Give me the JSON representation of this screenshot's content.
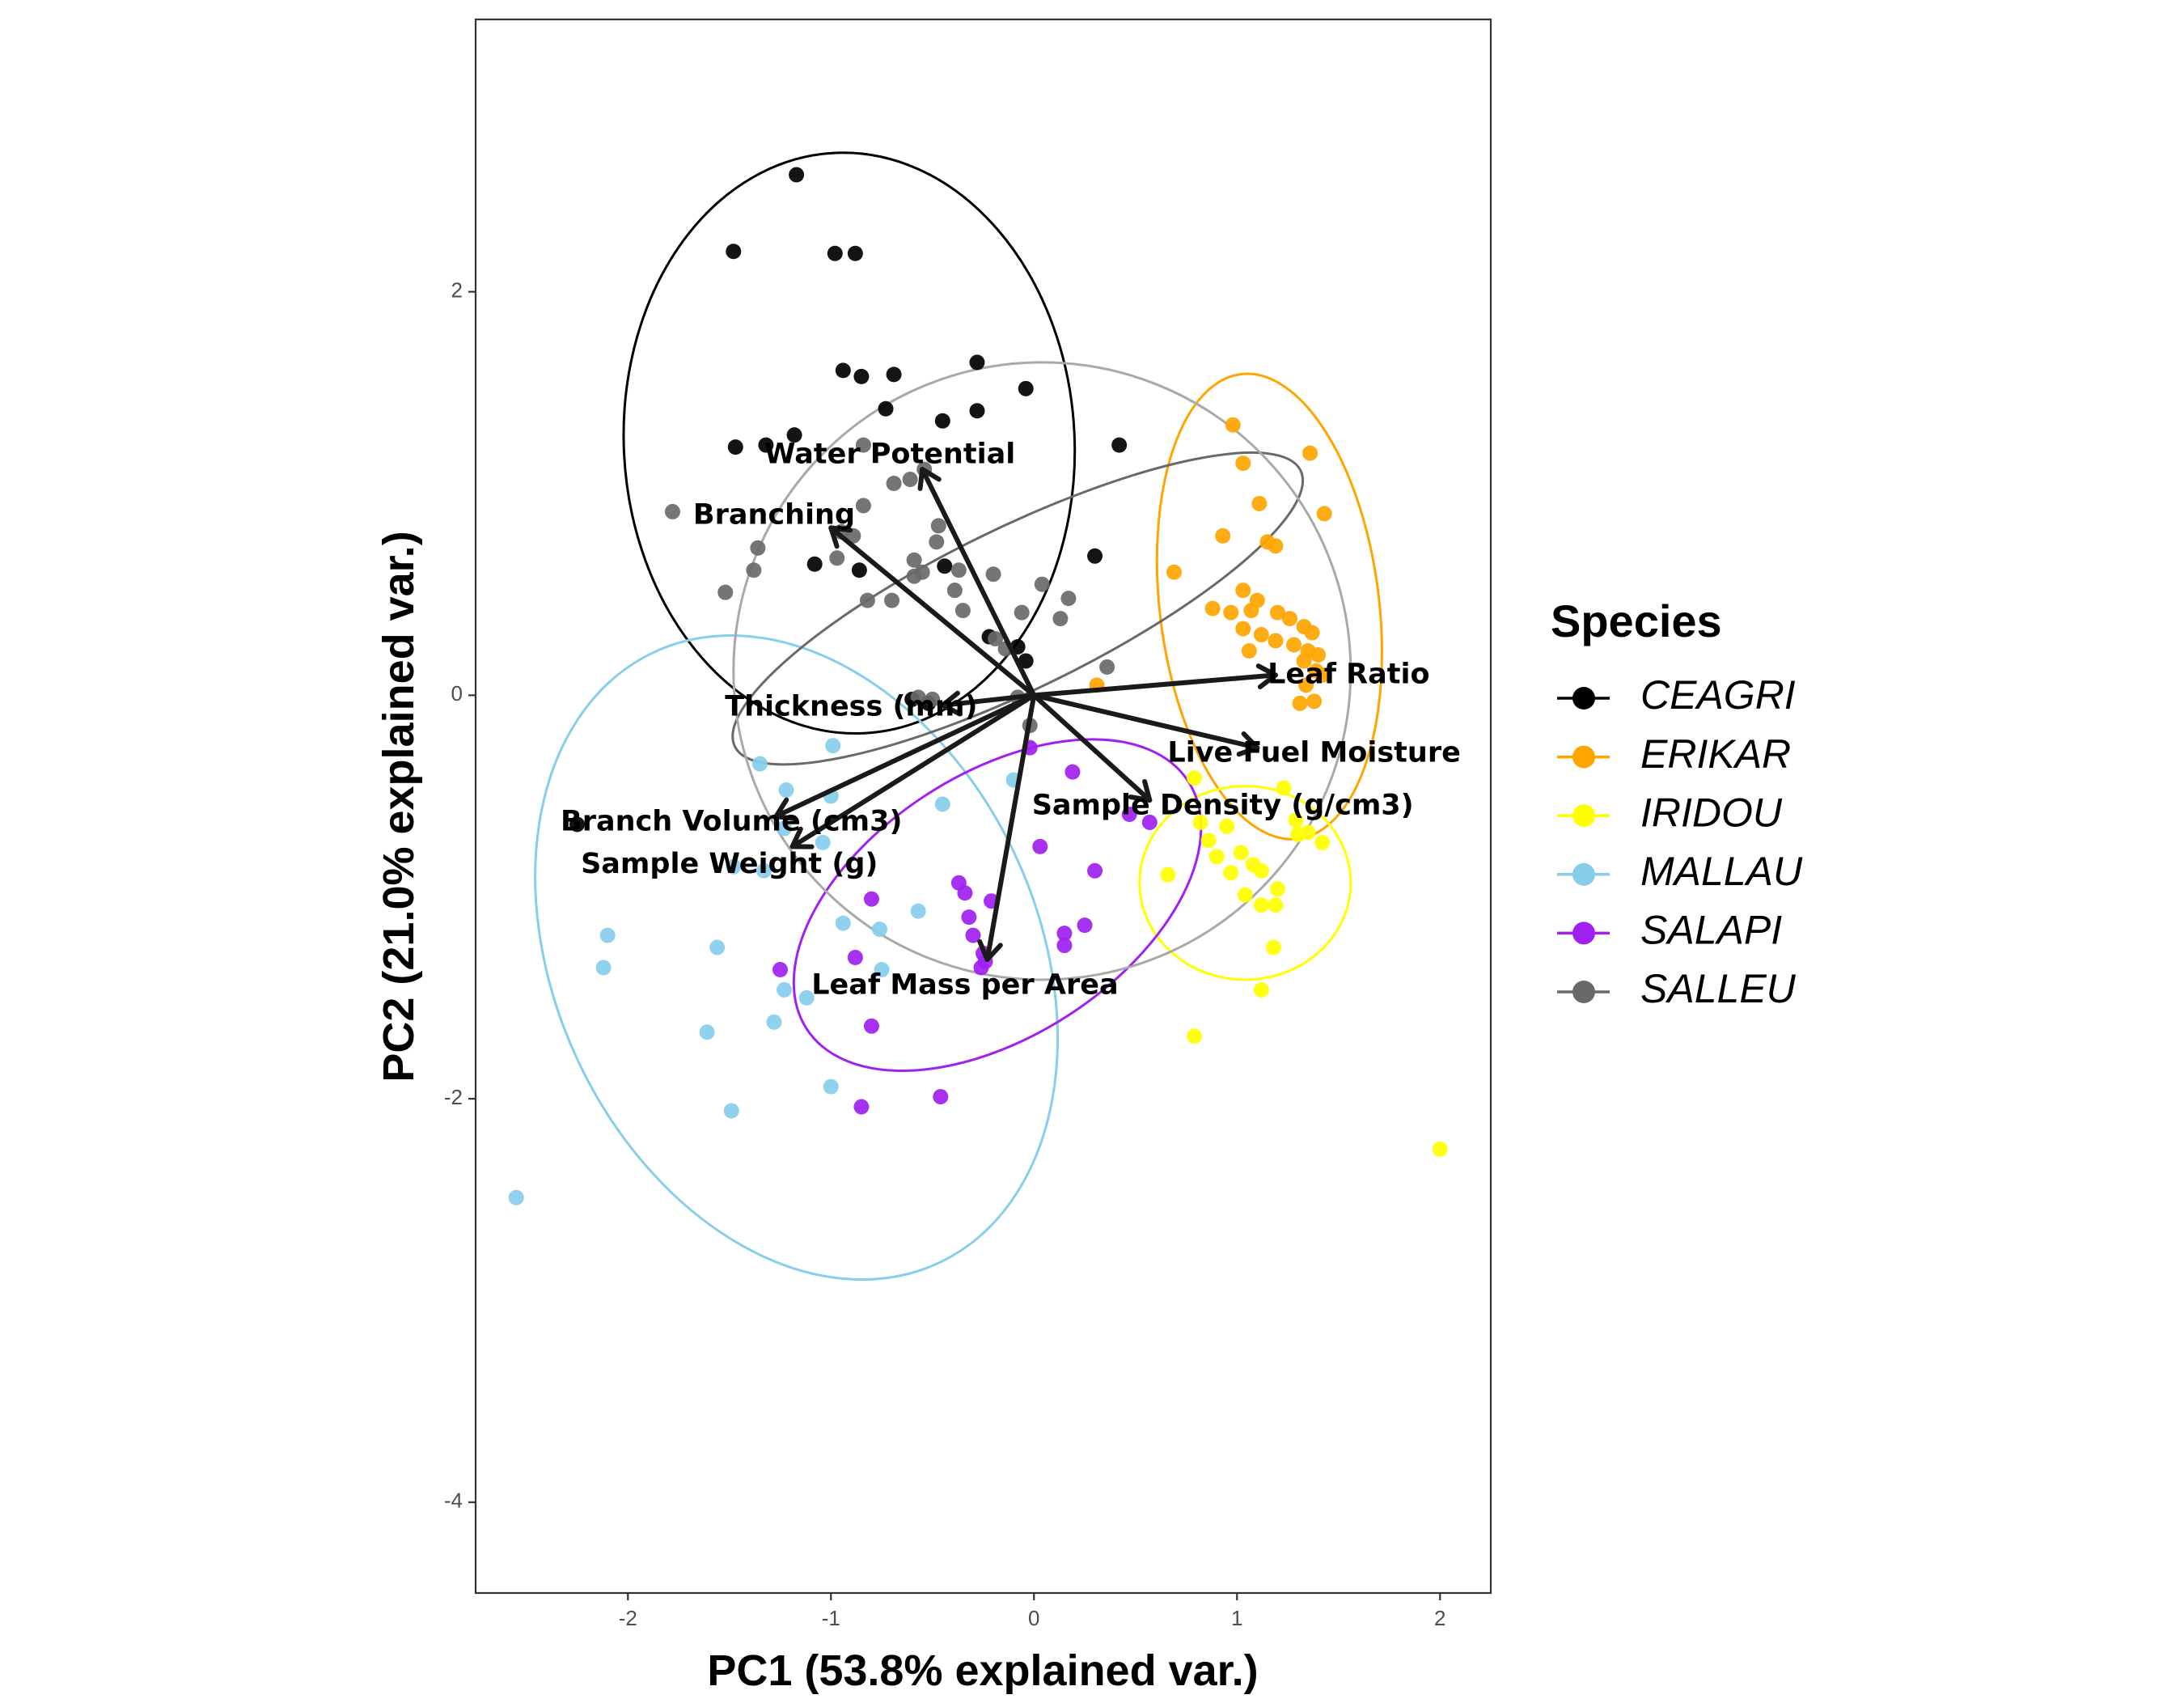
{
  "chart_data": {
    "type": "scatter",
    "subtype": "pca-biplot",
    "xlabel": "PC1 (53.8% explained var.)",
    "ylabel": "PC2 (21.0% explained var.)",
    "xlim": [
      -2.75,
      2.25
    ],
    "ylim": [
      -4.45,
      3.35
    ],
    "x_ticks": [
      -2,
      -1,
      0,
      1,
      2
    ],
    "y_ticks": [
      -4,
      -2,
      0,
      2
    ],
    "grid": false,
    "legend": {
      "title": "Species",
      "position": "right"
    },
    "series": [
      {
        "name": "CEAGRI",
        "color": "#000000",
        "stroke": "#000000",
        "points": [
          [
            -1.17,
            2.58
          ],
          [
            -1.48,
            2.2
          ],
          [
            -0.98,
            2.19
          ],
          [
            -0.88,
            2.19
          ],
          [
            -0.94,
            1.61
          ],
          [
            -0.85,
            1.58
          ],
          [
            -0.69,
            1.59
          ],
          [
            -0.28,
            1.65
          ],
          [
            -0.73,
            1.42
          ],
          [
            -0.45,
            1.36
          ],
          [
            -0.28,
            1.41
          ],
          [
            -0.04,
            1.52
          ],
          [
            -1.47,
            1.23
          ],
          [
            -1.32,
            1.24
          ],
          [
            -1.18,
            1.29
          ],
          [
            0.42,
            1.24
          ],
          [
            -1.08,
            0.65
          ],
          [
            -0.86,
            0.62
          ],
          [
            -0.44,
            0.64
          ],
          [
            0.3,
            0.69
          ],
          [
            -0.22,
            0.29
          ],
          [
            -0.08,
            0.24
          ],
          [
            -0.04,
            0.17
          ],
          [
            -0.6,
            -0.02
          ],
          [
            -0.52,
            -0.04
          ],
          [
            -2.25,
            -0.64
          ]
        ]
      },
      {
        "name": "ERIKAR",
        "color": "#FFA500",
        "stroke": "#FFA500",
        "points": [
          [
            0.98,
            1.34
          ],
          [
            1.03,
            1.15
          ],
          [
            1.36,
            1.2
          ],
          [
            1.11,
            0.95
          ],
          [
            0.93,
            0.79
          ],
          [
            1.15,
            0.76
          ],
          [
            1.19,
            0.74
          ],
          [
            1.43,
            0.9
          ],
          [
            0.69,
            0.61
          ],
          [
            1.03,
            0.52
          ],
          [
            1.1,
            0.47
          ],
          [
            1.07,
            0.42
          ],
          [
            0.88,
            0.43
          ],
          [
            0.97,
            0.41
          ],
          [
            1.2,
            0.41
          ],
          [
            1.26,
            0.38
          ],
          [
            1.33,
            0.34
          ],
          [
            1.37,
            0.31
          ],
          [
            1.03,
            0.33
          ],
          [
            1.28,
            0.25
          ],
          [
            1.35,
            0.22
          ],
          [
            1.06,
            0.22
          ],
          [
            1.12,
            0.3
          ],
          [
            1.19,
            0.27
          ],
          [
            1.4,
            0.2
          ],
          [
            1.33,
            0.17
          ],
          [
            1.39,
            0.12
          ],
          [
            1.34,
            0.05
          ],
          [
            1.42,
            0.1
          ],
          [
            1.38,
            -0.03
          ],
          [
            1.31,
            -0.04
          ],
          [
            0.31,
            0.05
          ]
        ]
      },
      {
        "name": "IRIDOU",
        "color": "#FFFF00",
        "stroke": "#FFFF00",
        "points": [
          [
            0.79,
            -0.41
          ],
          [
            0.82,
            -0.63
          ],
          [
            0.95,
            -0.65
          ],
          [
            1.23,
            -0.46
          ],
          [
            1.29,
            -0.62
          ],
          [
            1.35,
            -0.68
          ],
          [
            1.42,
            -0.73
          ],
          [
            0.86,
            -0.72
          ],
          [
            0.9,
            -0.8
          ],
          [
            1.02,
            -0.78
          ],
          [
            1.08,
            -0.84
          ],
          [
            0.97,
            -0.88
          ],
          [
            1.12,
            -0.87
          ],
          [
            1.2,
            -0.96
          ],
          [
            1.04,
            -0.99
          ],
          [
            0.66,
            -0.89
          ],
          [
            1.19,
            -1.04
          ],
          [
            1.12,
            -1.04
          ],
          [
            1.18,
            -1.25
          ],
          [
            1.12,
            -1.46
          ],
          [
            0.79,
            -1.69
          ],
          [
            2.0,
            -2.25
          ],
          [
            1.3,
            -0.69
          ]
        ]
      },
      {
        "name": "MALLAU",
        "color": "#87CEEB",
        "stroke": "#87CEEB",
        "points": [
          [
            -0.99,
            -0.25
          ],
          [
            -1.35,
            -0.34
          ],
          [
            -1.22,
            -0.47
          ],
          [
            -1.0,
            -0.5
          ],
          [
            -0.45,
            -0.54
          ],
          [
            -1.23,
            -0.66
          ],
          [
            -1.04,
            -0.73
          ],
          [
            -1.48,
            -0.85
          ],
          [
            -1.33,
            -0.87
          ],
          [
            -2.1,
            -1.19
          ],
          [
            -2.12,
            -1.35
          ],
          [
            -1.56,
            -1.25
          ],
          [
            -0.57,
            -1.07
          ],
          [
            -0.94,
            -1.13
          ],
          [
            -0.76,
            -1.16
          ],
          [
            -0.75,
            -1.36
          ],
          [
            -1.23,
            -1.46
          ],
          [
            -1.12,
            -1.5
          ],
          [
            -1.28,
            -1.62
          ],
          [
            -1.61,
            -1.67
          ],
          [
            -1.0,
            -1.94
          ],
          [
            -1.49,
            -2.06
          ],
          [
            -2.55,
            -2.49
          ],
          [
            -0.1,
            -0.42
          ]
        ]
      },
      {
        "name": "SALAPI",
        "color": "#A020F0",
        "stroke": "#A020F0",
        "points": [
          [
            -0.02,
            -0.26
          ],
          [
            0.19,
            -0.38
          ],
          [
            0.47,
            -0.59
          ],
          [
            0.57,
            -0.63
          ],
          [
            0.03,
            -0.75
          ],
          [
            0.3,
            -0.87
          ],
          [
            -0.37,
            -0.93
          ],
          [
            -0.34,
            -0.98
          ],
          [
            -0.8,
            -1.01
          ],
          [
            -0.21,
            -1.02
          ],
          [
            -0.32,
            -1.1
          ],
          [
            -0.3,
            -1.19
          ],
          [
            0.15,
            -1.18
          ],
          [
            0.25,
            -1.14
          ],
          [
            0.15,
            -1.24
          ],
          [
            -0.25,
            -1.28
          ],
          [
            -0.88,
            -1.3
          ],
          [
            -0.24,
            -1.32
          ],
          [
            -0.26,
            -1.35
          ],
          [
            -1.25,
            -1.36
          ],
          [
            -0.8,
            -1.64
          ],
          [
            -0.85,
            -2.04
          ],
          [
            -0.46,
            -1.99
          ]
        ]
      },
      {
        "name": "SALLEU",
        "color": "#696969",
        "stroke": "#696969",
        "points": [
          [
            -1.78,
            0.91
          ],
          [
            -0.84,
            1.24
          ],
          [
            -0.54,
            1.12
          ],
          [
            -0.69,
            1.05
          ],
          [
            -0.61,
            1.07
          ],
          [
            -0.84,
            0.94
          ],
          [
            -0.95,
            0.81
          ],
          [
            -0.47,
            0.84
          ],
          [
            -0.89,
            0.79
          ],
          [
            -0.48,
            0.76
          ],
          [
            -1.36,
            0.73
          ],
          [
            -1.38,
            0.62
          ],
          [
            -0.97,
            0.68
          ],
          [
            -0.59,
            0.67
          ],
          [
            -0.55,
            0.61
          ],
          [
            -0.59,
            0.59
          ],
          [
            -0.37,
            0.62
          ],
          [
            -0.2,
            0.6
          ],
          [
            -0.39,
            0.52
          ],
          [
            0.04,
            0.55
          ],
          [
            0.17,
            0.48
          ],
          [
            -0.82,
            0.47
          ],
          [
            -0.7,
            0.47
          ],
          [
            -0.06,
            0.41
          ],
          [
            -0.35,
            0.42
          ],
          [
            0.13,
            0.38
          ],
          [
            -1.52,
            0.51
          ],
          [
            -0.19,
            0.28
          ],
          [
            -0.14,
            0.23
          ],
          [
            0.36,
            0.14
          ],
          [
            -0.57,
            -0.01
          ],
          [
            -0.5,
            -0.02
          ],
          [
            -0.02,
            -0.15
          ],
          [
            -0.08,
            -0.01
          ]
        ]
      }
    ],
    "ellipses": [
      {
        "series": "CEAGRI",
        "center": [
          -0.91,
          1.25
        ],
        "rx": 1.11,
        "ry": 1.44,
        "angle_deg": -3
      },
      {
        "series": "ERIKAR",
        "center": [
          1.16,
          0.44
        ],
        "rx": 0.54,
        "ry": 1.16,
        "angle_deg": -7
      },
      {
        "series": "IRIDOU",
        "center": [
          1.04,
          -0.93
        ],
        "rx": 0.52,
        "ry": 0.48,
        "angle_deg": 0
      },
      {
        "series": "MALLAU",
        "center": [
          -1.17,
          -1.3
        ],
        "rx": 1.19,
        "ry": 1.67,
        "angle_deg": -25
      },
      {
        "series": "SALAPI",
        "center": [
          -0.18,
          -1.04
        ],
        "rx": 1.12,
        "ry": 0.65,
        "angle_deg": -33
      },
      {
        "series": "SALLEU",
        "center": [
          -0.08,
          0.43
        ],
        "rx": 1.55,
        "ry": 0.4,
        "angle_deg": -26
      },
      {
        "series": "SALLEU",
        "center": [
          0.04,
          0.12
        ],
        "rx": 1.52,
        "ry": 1.53,
        "angle_deg": 0,
        "color": "#A9A9A9"
      }
    ],
    "loadings": [
      {
        "label": "Water Potential",
        "x": -0.55,
        "y": 1.12,
        "label_x": -0.71,
        "label_y": 1.19,
        "anchor": "middle"
      },
      {
        "label": "Branching",
        "x": -1.0,
        "y": 0.83,
        "label_x": -1.28,
        "label_y": 0.89,
        "anchor": "middle"
      },
      {
        "label": "Thickness (mm)",
        "x": -0.45,
        "y": -0.05,
        "label_x": -0.9,
        "label_y": -0.06,
        "anchor": "middle"
      },
      {
        "label": "Branch Volume (cm3)",
        "x": -1.27,
        "y": -0.6,
        "label_x": -1.49,
        "label_y": -0.63,
        "anchor": "middle"
      },
      {
        "label": "Sample Weight (g)",
        "x": -1.19,
        "y": -0.75,
        "label_x": -1.5,
        "label_y": -0.84,
        "anchor": "middle"
      },
      {
        "label": "Leaf Ratio",
        "x": 1.19,
        "y": 0.1,
        "label_x": 1.55,
        "label_y": 0.1,
        "anchor": "middle"
      },
      {
        "label": "Live Fuel Moisture",
        "x": 1.1,
        "y": -0.26,
        "label_x": 1.38,
        "label_y": -0.29,
        "anchor": "middle"
      },
      {
        "label": "Sample Density (g/cm3)",
        "x": 0.57,
        "y": -0.52,
        "label_x": 0.93,
        "label_y": -0.55,
        "anchor": "middle"
      },
      {
        "label": "Leaf Mass per Area",
        "x": -0.23,
        "y": -1.31,
        "label_x": -0.34,
        "label_y": -1.44,
        "anchor": "middle"
      }
    ]
  }
}
